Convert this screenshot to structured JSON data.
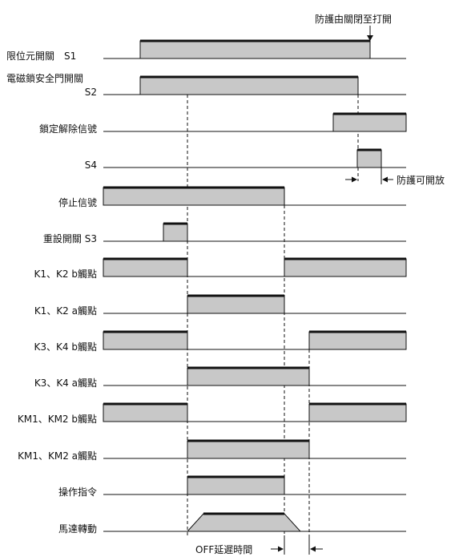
{
  "annotations": {
    "guard_open": "防護由關閉至打開",
    "guard_release": "防護可開放",
    "off_delay": "OFF延遲時間"
  },
  "signals": [
    {
      "id": "s1",
      "label_lines": [
        "限位元開關　S1"
      ],
      "align": "left",
      "segments": [
        {
          "shape": "rect",
          "on": true
        }
      ]
    },
    {
      "id": "s2",
      "label_lines": [
        "電磁鎖安全門開關",
        "S2"
      ],
      "align": "right",
      "segments": [
        {
          "shape": "rect",
          "on": true
        }
      ]
    },
    {
      "id": "unlock",
      "label_lines": [
        "鎖定解除信號"
      ],
      "align": "right",
      "segments": [
        {
          "shape": "rect",
          "on": true
        }
      ]
    },
    {
      "id": "s4",
      "label_lines": [
        "S4"
      ],
      "align": "right",
      "segments": [
        {
          "shape": "rect",
          "on": true
        }
      ]
    },
    {
      "id": "stop",
      "label_lines": [
        "停止信號"
      ],
      "align": "right",
      "segments": [
        {
          "shape": "rect",
          "on": true
        }
      ]
    },
    {
      "id": "reset",
      "label_lines": [
        "重設開關 S3"
      ],
      "align": "right",
      "segments": [
        {
          "shape": "rect",
          "on": true
        }
      ]
    },
    {
      "id": "k12b",
      "label_lines": [
        "K1、K2 b觸點"
      ],
      "align": "right",
      "segments": [
        {
          "shape": "rect",
          "on": true
        },
        {
          "shape": "rect",
          "on": true
        }
      ]
    },
    {
      "id": "k12a",
      "label_lines": [
        "K1、K2 a觸點"
      ],
      "align": "right",
      "segments": [
        {
          "shape": "rect",
          "on": true
        }
      ]
    },
    {
      "id": "k34b",
      "label_lines": [
        "K3、K4 b觸點"
      ],
      "align": "right",
      "segments": [
        {
          "shape": "rect",
          "on": true
        },
        {
          "shape": "rect",
          "on": true
        }
      ]
    },
    {
      "id": "k34a",
      "label_lines": [
        "K3、K4 a觸點"
      ],
      "align": "right",
      "segments": [
        {
          "shape": "rect",
          "on": true
        }
      ]
    },
    {
      "id": "km12b",
      "label_lines": [
        "KM1、KM2 b觸點"
      ],
      "align": "right",
      "segments": [
        {
          "shape": "rect",
          "on": true
        },
        {
          "shape": "rect",
          "on": true
        }
      ]
    },
    {
      "id": "km12a",
      "label_lines": [
        "KM1、KM2 a觸點"
      ],
      "align": "right",
      "segments": [
        {
          "shape": "rect",
          "on": true
        }
      ]
    },
    {
      "id": "cmd",
      "label_lines": [
        "操作指令"
      ],
      "align": "right",
      "segments": [
        {
          "shape": "rect",
          "on": true
        }
      ]
    },
    {
      "id": "motor",
      "label_lines": [
        "馬達轉動"
      ],
      "align": "right",
      "segments": [
        {
          "shape": "trapezoid",
          "on": true
        }
      ]
    }
  ],
  "colors": {
    "pulse_fill": "#c8c8c8",
    "line": "#111111"
  }
}
